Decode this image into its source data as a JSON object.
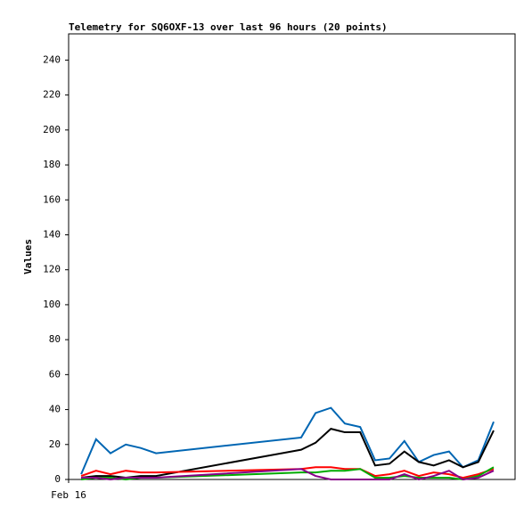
{
  "chart_data": {
    "type": "line",
    "title": "Telemetry for SQ6OXF-13 over last 96 hours (20 points)",
    "y_label": "Values",
    "x": [
      2.7,
      5.9,
      9.0,
      12.3,
      15.5,
      18.8,
      50.0,
      53.1,
      56.4,
      59.4,
      62.7,
      65.9,
      69.0,
      72.2,
      75.3,
      78.5,
      81.8,
      84.8,
      88.1,
      91.4
    ],
    "xlim": [
      0,
      96
    ],
    "xticks": [
      {
        "value": 0,
        "label": "Feb 16"
      }
    ],
    "ylim": [
      0,
      255
    ],
    "yticks": [
      0,
      20,
      40,
      60,
      80,
      100,
      120,
      140,
      160,
      180,
      200,
      220,
      240
    ],
    "series": [
      {
        "color": "#0066b3",
        "values": [
          3,
          23,
          15,
          20,
          18,
          15,
          24,
          38,
          41,
          32,
          30,
          11,
          12,
          22,
          10,
          14,
          16,
          7,
          11,
          33
        ]
      },
      {
        "color": "#000000",
        "values": [
          1,
          2,
          2,
          1,
          2,
          2,
          17,
          21,
          29,
          27,
          27,
          8,
          9,
          16,
          10,
          8,
          11,
          7,
          10,
          28
        ]
      },
      {
        "color": "#ff0000",
        "values": [
          2,
          5,
          3,
          5,
          4,
          4,
          6,
          7,
          7,
          6,
          6,
          2,
          3,
          5,
          2,
          4,
          3,
          1,
          3,
          6
        ]
      },
      {
        "color": "#00aa00",
        "values": [
          0,
          1,
          1,
          0,
          1,
          1,
          4,
          4,
          5,
          5,
          6,
          1,
          1,
          2,
          1,
          1,
          1,
          0,
          2,
          7
        ]
      },
      {
        "color": "#880088",
        "values": [
          1,
          1,
          0,
          1,
          1,
          1,
          6,
          2,
          0,
          0,
          0,
          0,
          0,
          3,
          0,
          2,
          5,
          0,
          1,
          5
        ]
      }
    ]
  }
}
